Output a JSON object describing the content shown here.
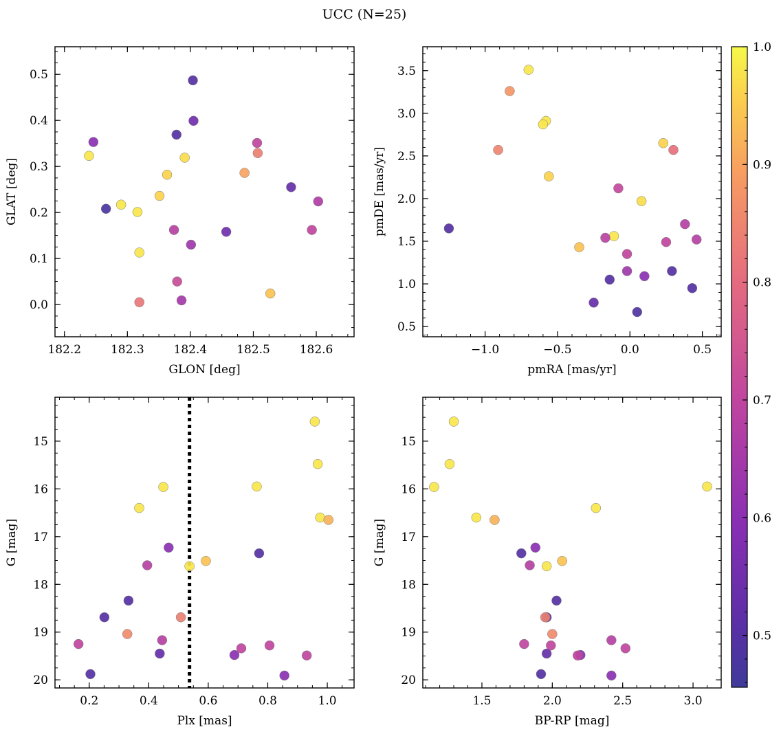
{
  "title": "UCC (N=25)",
  "colormap": {
    "name": "plasma",
    "range": [
      0.456,
      1.0
    ],
    "ticks": [
      "0.5",
      "0.6",
      "0.7",
      "0.8",
      "0.9",
      "1.0"
    ],
    "tick_values": [
      0.5,
      0.6,
      0.7,
      0.8,
      0.9,
      1.0
    ]
  },
  "chart_data": [
    {
      "type": "scatter",
      "xlabel": "GLON [deg]",
      "ylabel": "GLAT [deg]",
      "xlim": [
        182.185,
        182.66
      ],
      "ylim": [
        -0.07,
        0.56
      ],
      "xticks": [
        "182.2",
        "182.3",
        "182.4",
        "182.5",
        "182.6"
      ],
      "xtick_values": [
        182.2,
        182.3,
        182.4,
        182.5,
        182.6
      ],
      "yticks": [
        "0.0",
        "0.1",
        "0.2",
        "0.3",
        "0.4",
        "0.5"
      ],
      "ytick_values": [
        0.0,
        0.1,
        0.2,
        0.3,
        0.4,
        0.5
      ],
      "xminor": 0.025,
      "yminor": 0.025,
      "points": [
        {
          "x": 182.404,
          "y": 0.487,
          "c": 0.5
        },
        {
          "x": 182.405,
          "y": 0.399,
          "c": 0.55
        },
        {
          "x": 182.378,
          "y": 0.369,
          "c": 0.5
        },
        {
          "x": 182.246,
          "y": 0.353,
          "c": 0.6
        },
        {
          "x": 182.506,
          "y": 0.351,
          "c": 0.7
        },
        {
          "x": 182.507,
          "y": 0.329,
          "c": 0.84
        },
        {
          "x": 182.239,
          "y": 0.323,
          "c": 0.98
        },
        {
          "x": 182.391,
          "y": 0.319,
          "c": 0.97
        },
        {
          "x": 182.486,
          "y": 0.286,
          "c": 0.9
        },
        {
          "x": 182.363,
          "y": 0.282,
          "c": 0.96
        },
        {
          "x": 182.56,
          "y": 0.255,
          "c": 0.53
        },
        {
          "x": 182.351,
          "y": 0.236,
          "c": 0.96
        },
        {
          "x": 182.603,
          "y": 0.224,
          "c": 0.67
        },
        {
          "x": 182.29,
          "y": 0.217,
          "c": 0.98
        },
        {
          "x": 182.266,
          "y": 0.208,
          "c": 0.48
        },
        {
          "x": 182.316,
          "y": 0.201,
          "c": 0.98
        },
        {
          "x": 182.374,
          "y": 0.162,
          "c": 0.68
        },
        {
          "x": 182.593,
          "y": 0.162,
          "c": 0.7
        },
        {
          "x": 182.457,
          "y": 0.158,
          "c": 0.55
        },
        {
          "x": 182.401,
          "y": 0.13,
          "c": 0.64
        },
        {
          "x": 182.319,
          "y": 0.113,
          "c": 0.98
        },
        {
          "x": 182.379,
          "y": 0.05,
          "c": 0.72
        },
        {
          "x": 182.527,
          "y": 0.024,
          "c": 0.94
        },
        {
          "x": 182.386,
          "y": 0.009,
          "c": 0.65
        },
        {
          "x": 182.319,
          "y": 0.005,
          "c": 0.82
        }
      ]
    },
    {
      "type": "scatter",
      "xlabel": "pmRA [mas/yr]",
      "ylabel": "pmDE [mas/yr]",
      "xlim": [
        -1.43,
        0.63
      ],
      "ylim": [
        0.38,
        3.78
      ],
      "xticks": [
        "−1.0",
        "−0.5",
        "0.0",
        "0.5"
      ],
      "xtick_values": [
        -1.0,
        -0.5,
        0.0,
        0.5
      ],
      "yticks": [
        "0.5",
        "1.0",
        "1.5",
        "2.0",
        "2.5",
        "3.0",
        "3.5"
      ],
      "ytick_values": [
        0.5,
        1.0,
        1.5,
        2.0,
        2.5,
        3.0,
        3.5
      ],
      "xminor": 0.1,
      "yminor": 0.1,
      "points": [
        {
          "x": -0.7,
          "y": 3.51,
          "c": 0.98
        },
        {
          "x": -0.83,
          "y": 3.26,
          "c": 0.88
        },
        {
          "x": -0.58,
          "y": 2.91,
          "c": 0.98
        },
        {
          "x": -0.6,
          "y": 2.87,
          "c": 0.98
        },
        {
          "x": 0.23,
          "y": 2.65,
          "c": 0.96
        },
        {
          "x": 0.3,
          "y": 2.57,
          "c": 0.81
        },
        {
          "x": -0.91,
          "y": 2.57,
          "c": 0.85
        },
        {
          "x": -0.56,
          "y": 2.26,
          "c": 0.96
        },
        {
          "x": -0.08,
          "y": 2.12,
          "c": 0.71
        },
        {
          "x": 0.08,
          "y": 1.97,
          "c": 0.97
        },
        {
          "x": 0.38,
          "y": 1.7,
          "c": 0.68
        },
        {
          "x": -1.25,
          "y": 1.65,
          "c": 0.5
        },
        {
          "x": -0.11,
          "y": 1.56,
          "c": 0.98
        },
        {
          "x": -0.17,
          "y": 1.54,
          "c": 0.69
        },
        {
          "x": 0.46,
          "y": 1.52,
          "c": 0.68
        },
        {
          "x": 0.25,
          "y": 1.49,
          "c": 0.7
        },
        {
          "x": -0.35,
          "y": 1.43,
          "c": 0.94
        },
        {
          "x": -0.02,
          "y": 1.35,
          "c": 0.7
        },
        {
          "x": -0.02,
          "y": 1.15,
          "c": 0.64
        },
        {
          "x": 0.29,
          "y": 1.15,
          "c": 0.5
        },
        {
          "x": 0.1,
          "y": 1.09,
          "c": 0.6
        },
        {
          "x": -0.14,
          "y": 1.05,
          "c": 0.5
        },
        {
          "x": 0.43,
          "y": 0.95,
          "c": 0.5
        },
        {
          "x": -0.25,
          "y": 0.78,
          "c": 0.53
        },
        {
          "x": 0.05,
          "y": 0.67,
          "c": 0.49
        }
      ]
    },
    {
      "type": "scatter",
      "xlabel": "Plx [mas]",
      "ylabel": "G [mag]",
      "xlim": [
        0.085,
        1.09
      ],
      "ylim": [
        20.17,
        14.08
      ],
      "y_inverted": true,
      "xticks": [
        "0.2",
        "0.4",
        "0.6",
        "0.8",
        "1.0"
      ],
      "xtick_values": [
        0.2,
        0.4,
        0.6,
        0.8,
        1.0
      ],
      "yticks": [
        "15",
        "16",
        "17",
        "18",
        "19",
        "20"
      ],
      "ytick_values": [
        15,
        16,
        17,
        18,
        19,
        20
      ],
      "xminor": 0.05,
      "yminor": 0.25,
      "vline": {
        "x": 0.537,
        "style": "dotted",
        "color": "#000000"
      },
      "points": [
        {
          "x": 0.958,
          "y": 14.59,
          "c": 0.98
        },
        {
          "x": 0.968,
          "y": 15.48,
          "c": 0.98
        },
        {
          "x": 0.449,
          "y": 15.96,
          "c": 0.98
        },
        {
          "x": 0.763,
          "y": 15.95,
          "c": 0.98
        },
        {
          "x": 0.368,
          "y": 16.4,
          "c": 0.98
        },
        {
          "x": 0.976,
          "y": 16.6,
          "c": 0.98
        },
        {
          "x": 1.004,
          "y": 16.65,
          "c": 0.92
        },
        {
          "x": 0.467,
          "y": 17.23,
          "c": 0.6
        },
        {
          "x": 0.771,
          "y": 17.35,
          "c": 0.5
        },
        {
          "x": 0.592,
          "y": 17.51,
          "c": 0.94
        },
        {
          "x": 0.395,
          "y": 17.6,
          "c": 0.68
        },
        {
          "x": 0.537,
          "y": 17.62,
          "c": 0.98
        },
        {
          "x": 0.332,
          "y": 18.34,
          "c": 0.5
        },
        {
          "x": 0.251,
          "y": 18.69,
          "c": 0.5
        },
        {
          "x": 0.508,
          "y": 18.69,
          "c": 0.84
        },
        {
          "x": 0.328,
          "y": 19.04,
          "c": 0.86
        },
        {
          "x": 0.445,
          "y": 19.17,
          "c": 0.68
        },
        {
          "x": 0.164,
          "y": 19.25,
          "c": 0.7
        },
        {
          "x": 0.806,
          "y": 19.28,
          "c": 0.7
        },
        {
          "x": 0.711,
          "y": 19.34,
          "c": 0.7
        },
        {
          "x": 0.437,
          "y": 19.45,
          "c": 0.53
        },
        {
          "x": 0.688,
          "y": 19.48,
          "c": 0.6
        },
        {
          "x": 0.931,
          "y": 19.49,
          "c": 0.7
        },
        {
          "x": 0.204,
          "y": 19.88,
          "c": 0.5
        },
        {
          "x": 0.856,
          "y": 19.91,
          "c": 0.6
        }
      ]
    },
    {
      "type": "scatter",
      "xlabel": "BP-RP [mag]",
      "ylabel": "G [mag]",
      "xlim": [
        1.08,
        3.2
      ],
      "ylim": [
        20.17,
        14.08
      ],
      "y_inverted": true,
      "xticks": [
        "1.5",
        "2.0",
        "2.5",
        "3.0"
      ],
      "xtick_values": [
        1.5,
        2.0,
        2.5,
        3.0
      ],
      "yticks": [
        "15",
        "16",
        "17",
        "18",
        "19",
        "20"
      ],
      "ytick_values": [
        15,
        16,
        17,
        18,
        19,
        20
      ],
      "xminor": 0.1,
      "yminor": 0.25,
      "points": [
        {
          "x": 1.3,
          "y": 14.59,
          "c": 0.98
        },
        {
          "x": 1.27,
          "y": 15.48,
          "c": 0.98
        },
        {
          "x": 1.16,
          "y": 15.96,
          "c": 0.98
        },
        {
          "x": 3.1,
          "y": 15.95,
          "c": 0.98
        },
        {
          "x": 2.31,
          "y": 16.4,
          "c": 0.98
        },
        {
          "x": 1.46,
          "y": 16.6,
          "c": 0.98
        },
        {
          "x": 1.59,
          "y": 16.65,
          "c": 0.92
        },
        {
          "x": 1.88,
          "y": 17.23,
          "c": 0.6
        },
        {
          "x": 1.78,
          "y": 17.35,
          "c": 0.5
        },
        {
          "x": 2.07,
          "y": 17.51,
          "c": 0.94
        },
        {
          "x": 1.84,
          "y": 17.6,
          "c": 0.68
        },
        {
          "x": 1.96,
          "y": 17.62,
          "c": 0.98
        },
        {
          "x": 2.03,
          "y": 18.34,
          "c": 0.5
        },
        {
          "x": 1.96,
          "y": 18.69,
          "c": 0.5
        },
        {
          "x": 1.95,
          "y": 18.69,
          "c": 0.84
        },
        {
          "x": 2.0,
          "y": 19.04,
          "c": 0.86
        },
        {
          "x": 2.42,
          "y": 19.17,
          "c": 0.68
        },
        {
          "x": 1.8,
          "y": 19.25,
          "c": 0.7
        },
        {
          "x": 1.99,
          "y": 19.28,
          "c": 0.7
        },
        {
          "x": 2.52,
          "y": 19.34,
          "c": 0.7
        },
        {
          "x": 1.96,
          "y": 19.45,
          "c": 0.53
        },
        {
          "x": 2.2,
          "y": 19.48,
          "c": 0.6
        },
        {
          "x": 2.18,
          "y": 19.49,
          "c": 0.7
        },
        {
          "x": 1.92,
          "y": 19.88,
          "c": 0.5
        },
        {
          "x": 2.42,
          "y": 19.91,
          "c": 0.6
        }
      ]
    }
  ]
}
